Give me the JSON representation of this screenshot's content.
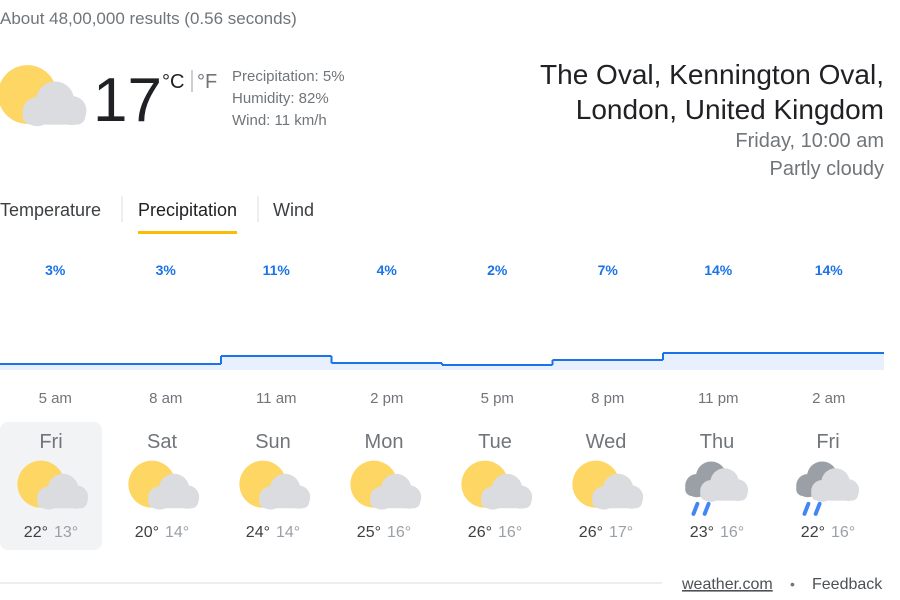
{
  "header": {
    "results_stats": "About 48,00,000 results (0.56 seconds)"
  },
  "current": {
    "icon": "partly-cloudy",
    "temperature": "17",
    "unit_c": "°C",
    "unit_f": "°F",
    "details": [
      "Precipitation: 5%",
      "Humidity: 82%",
      "Wind: 11 km/h"
    ]
  },
  "location": {
    "lines": [
      "The Oval, Kennington Oval,",
      "London, United Kingdom"
    ],
    "time": "Friday, 10:00 am",
    "condition": "Partly cloudy"
  },
  "tabs": {
    "items": [
      "Temperature",
      "Precipitation",
      "Wind"
    ],
    "selected": 1
  },
  "chart_data": {
    "type": "step-area",
    "categories": [
      "5 am",
      "8 am",
      "11 am",
      "2 pm",
      "5 pm",
      "8 pm",
      "11 pm",
      "2 am"
    ],
    "values": [
      3,
      3,
      11,
      4,
      2,
      7,
      14,
      14
    ],
    "value_labels": [
      "3%",
      "3%",
      "11%",
      "4%",
      "2%",
      "7%",
      "14%",
      "14%"
    ],
    "color": "#1a73e8",
    "fill": "#e8f0fe"
  },
  "days": {
    "selected": 0,
    "items": [
      {
        "name": "Fri",
        "icon": "partly-cloudy",
        "high": "22°",
        "low": "13°"
      },
      {
        "name": "Sat",
        "icon": "partly-cloudy",
        "high": "20°",
        "low": "14°"
      },
      {
        "name": "Sun",
        "icon": "partly-cloudy",
        "high": "24°",
        "low": "14°"
      },
      {
        "name": "Mon",
        "icon": "partly-cloudy",
        "high": "25°",
        "low": "16°"
      },
      {
        "name": "Tue",
        "icon": "partly-cloudy",
        "high": "26°",
        "low": "16°"
      },
      {
        "name": "Wed",
        "icon": "partly-cloudy",
        "high": "26°",
        "low": "17°"
      },
      {
        "name": "Thu",
        "icon": "rain",
        "high": "23°",
        "low": "16°"
      },
      {
        "name": "Fri",
        "icon": "rain",
        "high": "22°",
        "low": "16°"
      }
    ]
  },
  "footer": {
    "source": "weather.com",
    "separator": "•",
    "feedback": "Feedback"
  }
}
